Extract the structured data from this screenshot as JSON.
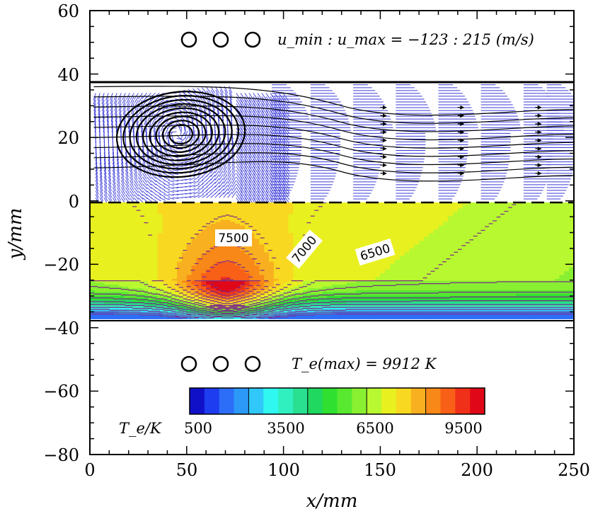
{
  "chart_data": {
    "type": "contour",
    "xlabel": "x/mm",
    "ylabel": "y/mm",
    "xlim": [
      0,
      250
    ],
    "ylim": [
      -80,
      60
    ],
    "xticks": [
      "0",
      "50",
      "100",
      "150",
      "200",
      "250"
    ],
    "yticks": [
      "60",
      "40",
      "20",
      "0",
      "−20",
      "−40",
      "−60",
      "−80"
    ],
    "velocity_annotation": "u_min : u_max = −123 : 215 (m/s)",
    "temperature_annotation": "T_e(max) = 9912 K",
    "colorbar_label": "T_e/K",
    "colorbar_ticks": [
      "500",
      "3500",
      "6500",
      "9500"
    ],
    "colorbar_range": [
      500,
      9912
    ],
    "contour_labels": [
      "7500",
      "7000",
      "6500"
    ],
    "temperature_contour_field": {
      "x_range_mm": [
        0,
        250
      ],
      "y_range_mm": [
        -37,
        0
      ],
      "peak_location_mm": [
        70,
        -33
      ],
      "peak_value_K": 9912,
      "levels_K": [
        500,
        1000,
        1500,
        2000,
        2500,
        3000,
        3500,
        4000,
        4500,
        5000,
        5500,
        6000,
        6500,
        7000,
        7500,
        8000,
        8500,
        9000,
        9500
      ]
    },
    "flow_field": {
      "region_y_mm": [
        0,
        37
      ],
      "u_min_mps": -123,
      "u_max_mps": 215,
      "recirculation_center_mm": [
        45,
        21
      ],
      "velocity_profile_x_mm": [
        108,
        128,
        150,
        172,
        194,
        216,
        238,
        250
      ]
    },
    "colorbar_colors": [
      "#1010c8",
      "#1e3cf0",
      "#2c6ef8",
      "#2c98f8",
      "#30c8f8",
      "#30f8f0",
      "#30f0c0",
      "#28e090",
      "#20d860",
      "#30e030",
      "#58e830",
      "#88f030",
      "#b8f830",
      "#e8f020",
      "#f8d820",
      "#f8b020",
      "#f88818",
      "#f86018",
      "#f03018",
      "#e00818"
    ]
  }
}
